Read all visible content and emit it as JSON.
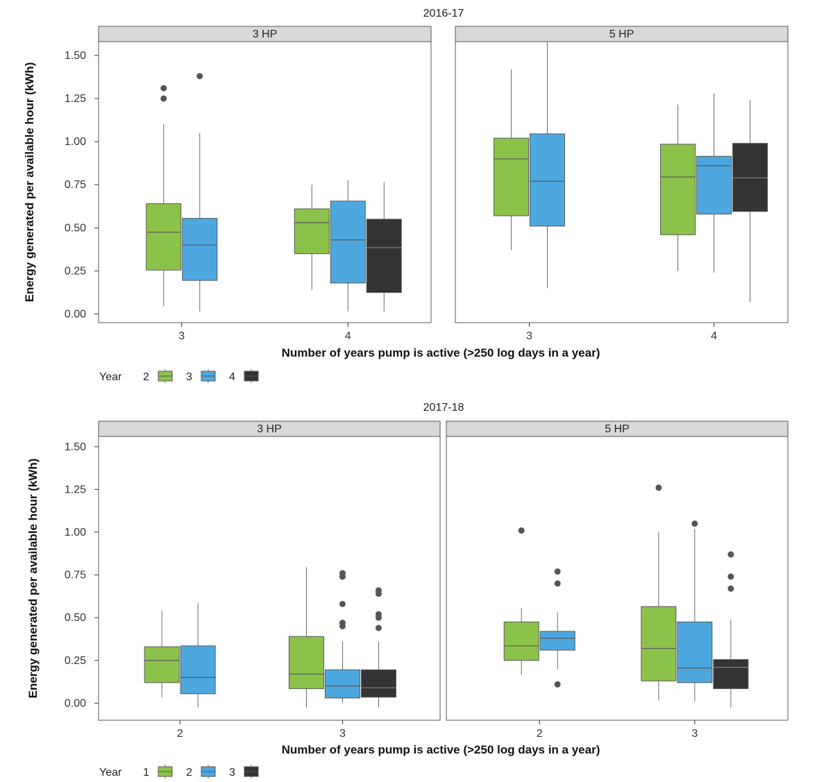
{
  "colors": {
    "g1": "#8bc34a",
    "g2": "#4da8e0",
    "g3": "#333333"
  },
  "chart_data": [
    {
      "type": "boxplot",
      "title": "2016-17",
      "ylabel": "Energy generated per available hour (kWh)",
      "xlabel": "Number of years pump is active (>250 log days in a year)",
      "yticks": [
        "0.00",
        "0.25",
        "0.50",
        "0.75",
        "1.00",
        "1.25",
        "1.50"
      ],
      "ylim": [
        -0.05,
        1.58
      ],
      "legend": {
        "title": "Year",
        "labels": [
          "2",
          "3",
          "4"
        ],
        "placement": "bottom-left"
      },
      "panels": [
        {
          "strip": "3 HP",
          "categories": [
            "3",
            "4"
          ],
          "xlim": [
            2.5,
            4.5
          ],
          "boxes": [
            {
              "x": 3,
              "group": 0,
              "q1": 0.255,
              "median": 0.475,
              "q3": 0.64,
              "lo": 0.045,
              "hi": 1.1,
              "outliers": [
                1.31,
                1.25
              ]
            },
            {
              "x": 3,
              "group": 1,
              "q1": 0.195,
              "median": 0.4,
              "q3": 0.555,
              "lo": 0.015,
              "hi": 1.05,
              "outliers": [
                1.38
              ]
            },
            {
              "x": 4,
              "group": 0,
              "q1": 0.35,
              "median": 0.53,
              "q3": 0.61,
              "lo": 0.14,
              "hi": 0.75,
              "outliers": []
            },
            {
              "x": 4,
              "group": 1,
              "q1": 0.18,
              "median": 0.43,
              "q3": 0.655,
              "lo": 0.015,
              "hi": 0.775,
              "outliers": []
            },
            {
              "x": 4,
              "group": 2,
              "q1": 0.125,
              "median": 0.385,
              "q3": 0.55,
              "lo": 0.015,
              "hi": 0.765,
              "outliers": []
            }
          ]
        },
        {
          "strip": "5 HP",
          "categories": [
            "3",
            "4"
          ],
          "xlim": [
            2.6,
            4.4
          ],
          "boxes": [
            {
              "x": 3,
              "group": 0,
              "q1": 0.57,
              "median": 0.9,
              "q3": 1.02,
              "lo": 0.37,
              "hi": 1.42,
              "outliers": []
            },
            {
              "x": 3,
              "group": 1,
              "q1": 0.51,
              "median": 0.77,
              "q3": 1.045,
              "lo": 0.15,
              "hi": 1.58,
              "outliers": []
            },
            {
              "x": 4,
              "group": 0,
              "q1": 0.46,
              "median": 0.795,
              "q3": 0.985,
              "lo": 0.25,
              "hi": 1.215,
              "outliers": []
            },
            {
              "x": 4,
              "group": 1,
              "q1": 0.58,
              "median": 0.86,
              "q3": 0.915,
              "lo": 0.24,
              "hi": 1.28,
              "outliers": []
            },
            {
              "x": 4,
              "group": 2,
              "q1": 0.595,
              "median": 0.79,
              "q3": 0.99,
              "lo": 0.07,
              "hi": 1.24,
              "outliers": []
            }
          ]
        }
      ]
    },
    {
      "type": "boxplot",
      "title": "2017-18",
      "ylabel": "Energy generated per available hour (kWh)",
      "xlabel": "Number of years pump is active (>250 log days in a year)",
      "yticks": [
        "0.00",
        "0.25",
        "0.50",
        "0.75",
        "1.00",
        "1.25",
        "1.50"
      ],
      "ylim": [
        -0.1,
        1.56
      ],
      "legend": {
        "title": "Year",
        "labels": [
          "1",
          "2",
          "3"
        ],
        "placement": "bottom-left"
      },
      "panels": [
        {
          "strip": "3 HP",
          "categories": [
            "2",
            "3"
          ],
          "xlim": [
            1.5,
            3.6
          ],
          "boxes": [
            {
              "x": 2,
              "group": 0,
              "q1": 0.12,
              "median": 0.25,
              "q3": 0.33,
              "lo": 0.035,
              "hi": 0.54,
              "outliers": []
            },
            {
              "x": 2,
              "group": 1,
              "q1": 0.055,
              "median": 0.15,
              "q3": 0.335,
              "lo": -0.025,
              "hi": 0.585,
              "outliers": []
            },
            {
              "x": 3,
              "group": 0,
              "q1": 0.085,
              "median": 0.17,
              "q3": 0.39,
              "lo": -0.025,
              "hi": 0.795,
              "outliers": []
            },
            {
              "x": 3,
              "group": 1,
              "q1": 0.03,
              "median": 0.1,
              "q3": 0.195,
              "lo": 0.0,
              "hi": 0.36,
              "outliers": [
                0.76,
                0.74,
                0.58,
                0.47,
                0.45
              ]
            },
            {
              "x": 3,
              "group": 2,
              "q1": 0.035,
              "median": 0.09,
              "q3": 0.195,
              "lo": -0.025,
              "hi": 0.36,
              "outliers": [
                0.66,
                0.64,
                0.52,
                0.5,
                0.44
              ]
            }
          ]
        },
        {
          "strip": "5 HP",
          "categories": [
            "2",
            "3"
          ],
          "xlim": [
            1.4,
            3.6
          ],
          "boxes": [
            {
              "x": 2,
              "group": 0,
              "q1": 0.25,
              "median": 0.335,
              "q3": 0.475,
              "lo": 0.165,
              "hi": 0.555,
              "outliers": [
                1.01
              ]
            },
            {
              "x": 2,
              "group": 1,
              "q1": 0.31,
              "median": 0.38,
              "q3": 0.42,
              "lo": 0.2,
              "hi": 0.53,
              "outliers": [
                0.77,
                0.7,
                0.11
              ]
            },
            {
              "x": 3,
              "group": 0,
              "q1": 0.13,
              "median": 0.32,
              "q3": 0.565,
              "lo": 0.015,
              "hi": 1.0,
              "outliers": [
                1.26
              ]
            },
            {
              "x": 3,
              "group": 1,
              "q1": 0.12,
              "median": 0.205,
              "q3": 0.475,
              "lo": 0.01,
              "hi": 1.02,
              "outliers": [
                1.05
              ]
            },
            {
              "x": 3,
              "group": 2,
              "q1": 0.085,
              "median": 0.21,
              "q3": 0.255,
              "lo": -0.025,
              "hi": 0.485,
              "outliers": [
                0.87,
                0.74,
                0.67
              ]
            }
          ]
        }
      ]
    }
  ]
}
